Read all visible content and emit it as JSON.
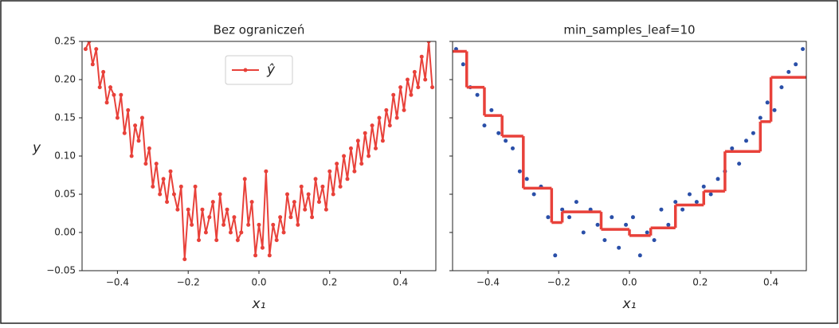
{
  "chart_data": [
    {
      "type": "line",
      "title": "Bez ograniczeń",
      "xlabel": "x₁",
      "ylabel": "y",
      "xlim": [
        -0.5,
        0.5
      ],
      "ylim": [
        -0.05,
        0.25
      ],
      "xticks": [
        {
          "value": -0.4,
          "label": "−0.4"
        },
        {
          "value": -0.2,
          "label": "−0.2"
        },
        {
          "value": 0,
          "label": "0.0"
        },
        {
          "value": 0.2,
          "label": "0.2"
        },
        {
          "value": 0.4,
          "label": "0.4"
        }
      ],
      "yticks": [
        {
          "value": -0.05,
          "label": "−0.05"
        },
        {
          "value": 0,
          "label": "0.00"
        },
        0.05,
        {
          "value": 0.1,
          "label": "0.10"
        },
        0.15,
        {
          "value": 0.2,
          "label": "0.20"
        },
        0.25
      ],
      "legend": "upper center",
      "x": [
        -0.49,
        -0.48,
        -0.47,
        -0.46,
        -0.45,
        -0.44,
        -0.43,
        -0.42,
        -0.41,
        -0.4,
        -0.39,
        -0.38,
        -0.37,
        -0.36,
        -0.35,
        -0.34,
        -0.33,
        -0.32,
        -0.31,
        -0.3,
        -0.29,
        -0.28,
        -0.27,
        -0.26,
        -0.25,
        -0.24,
        -0.23,
        -0.22,
        -0.21,
        -0.2,
        -0.19,
        -0.18,
        -0.17,
        -0.16,
        -0.15,
        -0.14,
        -0.13,
        -0.12,
        -0.11,
        -0.1,
        -0.09,
        -0.08,
        -0.07,
        -0.06,
        -0.05,
        -0.04,
        -0.03,
        -0.02,
        -0.01,
        0,
        0.01,
        0.02,
        0.03,
        0.04,
        0.05,
        0.06,
        0.07,
        0.08,
        0.09,
        0.1,
        0.11,
        0.12,
        0.13,
        0.14,
        0.15,
        0.16,
        0.17,
        0.18,
        0.19,
        0.2,
        0.21,
        0.22,
        0.23,
        0.24,
        0.25,
        0.26,
        0.27,
        0.28,
        0.29,
        0.3,
        0.31,
        0.32,
        0.33,
        0.34,
        0.35,
        0.36,
        0.37,
        0.38,
        0.39,
        0.4,
        0.41,
        0.42,
        0.43,
        0.44,
        0.45,
        0.46,
        0.47,
        0.48,
        0.49
      ],
      "series": [
        {
          "name": "ŷ",
          "color": "#e8413a",
          "values": [
            0.24,
            0.25,
            0.22,
            0.24,
            0.19,
            0.21,
            0.17,
            0.19,
            0.18,
            0.15,
            0.18,
            0.13,
            0.16,
            0.1,
            0.14,
            0.12,
            0.15,
            0.09,
            0.11,
            0.06,
            0.09,
            0.05,
            0.07,
            0.04,
            0.08,
            0.05,
            0.03,
            0.06,
            -0.035,
            0.03,
            0.01,
            0.06,
            -0.01,
            0.03,
            0,
            0.02,
            0.04,
            -0.01,
            0.05,
            0.01,
            0.03,
            0,
            0.02,
            -0.01,
            0,
            0.07,
            0.01,
            0.04,
            -0.03,
            0.01,
            -0.02,
            0.08,
            -0.03,
            0.01,
            -0.01,
            0.02,
            0,
            0.05,
            0.02,
            0.04,
            0.01,
            0.06,
            0.03,
            0.05,
            0.02,
            0.07,
            0.04,
            0.06,
            0.03,
            0.08,
            0.05,
            0.09,
            0.06,
            0.1,
            0.07,
            0.11,
            0.08,
            0.12,
            0.09,
            0.13,
            0.1,
            0.14,
            0.11,
            0.15,
            0.12,
            0.16,
            0.14,
            0.18,
            0.15,
            0.19,
            0.16,
            0.2,
            0.18,
            0.21,
            0.19,
            0.23,
            0.2,
            0.25,
            0.19
          ]
        }
      ]
    },
    {
      "type": "scatter",
      "title": "min_samples_leaf=10",
      "xlabel": "x₁",
      "xlim": [
        -0.5,
        0.5
      ],
      "ylim": [
        -0.05,
        0.25
      ],
      "xticks": [
        {
          "value": -0.4,
          "label": "−0.4"
        },
        {
          "value": -0.2,
          "label": "−0.2"
        },
        {
          "value": 0,
          "label": "0.0"
        },
        {
          "value": 0.2,
          "label": "0.2"
        },
        {
          "value": 0.4,
          "label": "0.4"
        }
      ],
      "yticks": [
        -0.05,
        0,
        0.05,
        0.1,
        0.15,
        0.2,
        0.25
      ],
      "x": [
        -0.49,
        -0.47,
        -0.45,
        -0.43,
        -0.41,
        -0.39,
        -0.37,
        -0.35,
        -0.33,
        -0.31,
        -0.29,
        -0.27,
        -0.25,
        -0.23,
        -0.21,
        -0.19,
        -0.17,
        -0.15,
        -0.13,
        -0.11,
        -0.09,
        -0.07,
        -0.05,
        -0.03,
        -0.01,
        0.01,
        0.03,
        0.05,
        0.07,
        0.09,
        0.11,
        0.13,
        0.15,
        0.17,
        0.19,
        0.21,
        0.23,
        0.25,
        0.27,
        0.29,
        0.31,
        0.33,
        0.35,
        0.37,
        0.39,
        0.41,
        0.43,
        0.45,
        0.47,
        0.49
      ],
      "values": [
        0.24,
        0.22,
        0.19,
        0.18,
        0.14,
        0.16,
        0.13,
        0.12,
        0.11,
        0.08,
        0.07,
        0.05,
        0.06,
        0.02,
        -0.03,
        0.03,
        0.02,
        0.04,
        0,
        0.03,
        0.01,
        -0.01,
        0.02,
        -0.02,
        0.01,
        0.02,
        -0.03,
        0,
        -0.01,
        0.03,
        0.01,
        0.04,
        0.03,
        0.05,
        0.04,
        0.06,
        0.05,
        0.07,
        0.08,
        0.11,
        0.09,
        0.12,
        0.13,
        0.15,
        0.17,
        0.16,
        0.19,
        0.21,
        0.22,
        0.24
      ],
      "color": "#2a4fa8",
      "step_color": "#e8413a",
      "step_edges": [
        -0.5,
        -0.46,
        -0.41,
        -0.36,
        -0.3,
        -0.22,
        -0.19,
        -0.08,
        0,
        0.06,
        0.13,
        0.21,
        0.27,
        0.37,
        0.4,
        0.5
      ],
      "step_values": [
        0.237,
        0.19,
        0.153,
        0.126,
        0.058,
        0.013,
        0.027,
        0.004,
        -0.004,
        0.006,
        0.036,
        0.054,
        0.106,
        0.145,
        0.203
      ]
    }
  ]
}
